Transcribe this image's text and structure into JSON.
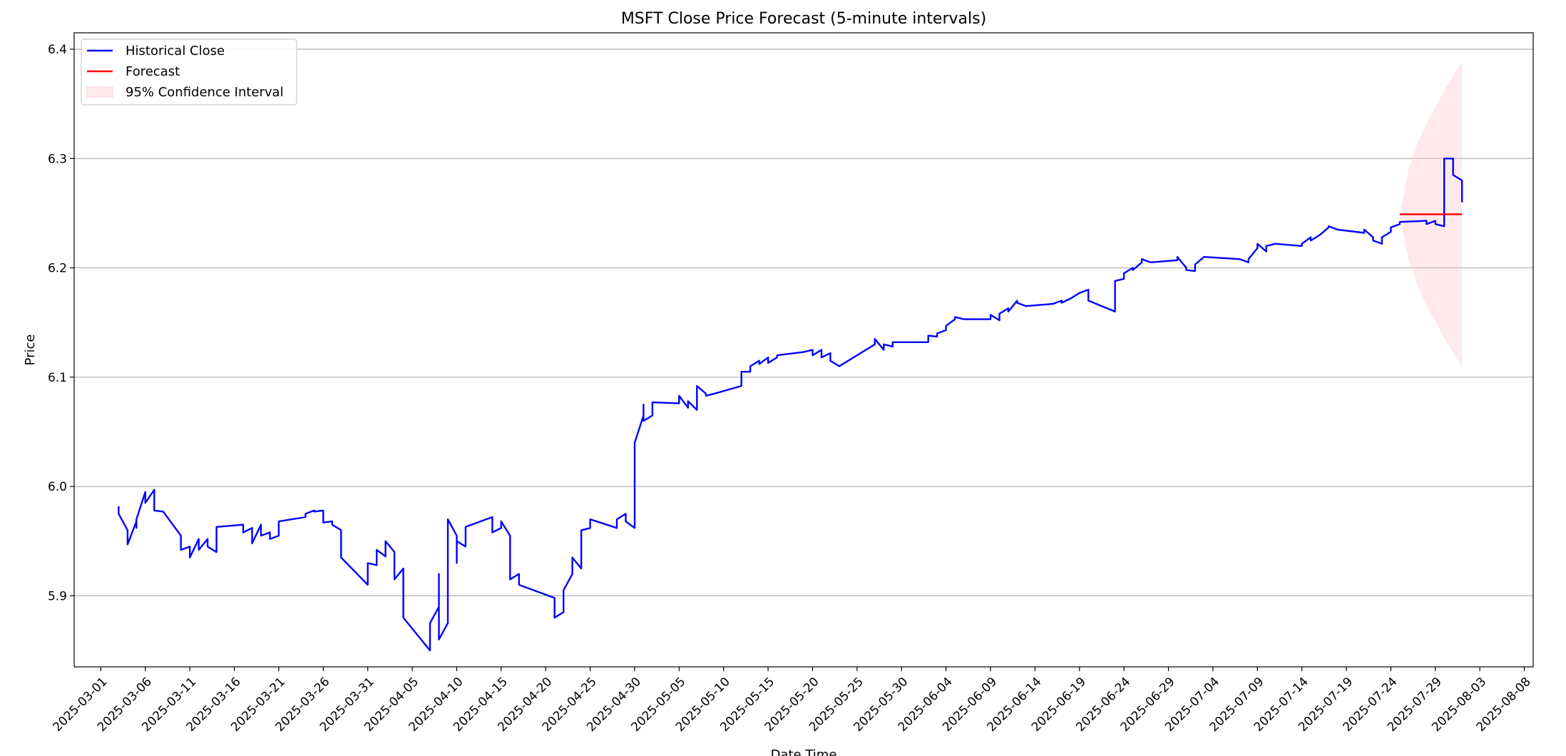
{
  "chart_data": {
    "type": "line",
    "title": "MSFT Close Price Forecast (5-minute intervals)",
    "xlabel": "Date Time",
    "ylabel": "Price",
    "x_type": "date",
    "xlim": [
      "2025-02-26",
      "2025-08-09"
    ],
    "ylim": [
      5.835,
      6.415
    ],
    "yticks": [
      5.9,
      6.0,
      6.1,
      6.2,
      6.3,
      6.4
    ],
    "ytick_labels": [
      "5.9",
      "6.0",
      "6.1",
      "6.2",
      "6.3",
      "6.4"
    ],
    "xticks": [
      "2025-03-01",
      "2025-03-06",
      "2025-03-11",
      "2025-03-16",
      "2025-03-21",
      "2025-03-26",
      "2025-03-31",
      "2025-04-05",
      "2025-04-10",
      "2025-04-15",
      "2025-04-20",
      "2025-04-25",
      "2025-04-30",
      "2025-05-05",
      "2025-05-10",
      "2025-05-15",
      "2025-05-20",
      "2025-05-25",
      "2025-05-30",
      "2025-06-04",
      "2025-06-09",
      "2025-06-14",
      "2025-06-19",
      "2025-06-24",
      "2025-06-29",
      "2025-07-04",
      "2025-07-09",
      "2025-07-14",
      "2025-07-19",
      "2025-07-24",
      "2025-07-29",
      "2025-08-03",
      "2025-08-08"
    ],
    "grid": "horizontal",
    "legend_position": "top-left",
    "legend": [
      {
        "label": "Historical Close",
        "kind": "line",
        "color": "#0000ff"
      },
      {
        "label": "Forecast",
        "kind": "line",
        "color": "#ff0000"
      },
      {
        "label": "95% Confidence Interval",
        "kind": "band",
        "color": "#ffc0cb"
      }
    ],
    "series": [
      {
        "name": "Historical Close",
        "color": "#0000ff",
        "points": [
          [
            "2025-03-03",
            5.982
          ],
          [
            "2025-03-03",
            5.975
          ],
          [
            "2025-03-04",
            5.96
          ],
          [
            "2025-03-04",
            5.955
          ],
          [
            "2025-03-04",
            5.947
          ],
          [
            "2025-03-05",
            5.968
          ],
          [
            "2025-03-05",
            5.962
          ],
          [
            "2025-03-05",
            5.97
          ],
          [
            "2025-03-06",
            5.995
          ],
          [
            "2025-03-06",
            5.985
          ],
          [
            "2025-03-07",
            5.997
          ],
          [
            "2025-03-07",
            5.985
          ],
          [
            "2025-03-07",
            5.978
          ],
          [
            "2025-03-08",
            5.977
          ],
          [
            "2025-03-10",
            5.955
          ],
          [
            "2025-03-10",
            5.942
          ],
          [
            "2025-03-11",
            5.945
          ],
          [
            "2025-03-11",
            5.935
          ],
          [
            "2025-03-12",
            5.952
          ],
          [
            "2025-03-12",
            5.942
          ],
          [
            "2025-03-13",
            5.952
          ],
          [
            "2025-03-13",
            5.945
          ],
          [
            "2025-03-14",
            5.94
          ],
          [
            "2025-03-14",
            5.945
          ],
          [
            "2025-03-14",
            5.963
          ],
          [
            "2025-03-17",
            5.965
          ],
          [
            "2025-03-17",
            5.958
          ],
          [
            "2025-03-18",
            5.962
          ],
          [
            "2025-03-18",
            5.948
          ],
          [
            "2025-03-19",
            5.965
          ],
          [
            "2025-03-19",
            5.955
          ],
          [
            "2025-03-20",
            5.958
          ],
          [
            "2025-03-20",
            5.952
          ],
          [
            "2025-03-21",
            5.955
          ],
          [
            "2025-03-21",
            5.968
          ],
          [
            "2025-03-24",
            5.972
          ],
          [
            "2025-03-24",
            5.975
          ],
          [
            "2025-03-25",
            5.978
          ],
          [
            "2025-03-25",
            5.977
          ],
          [
            "2025-03-26",
            5.978
          ],
          [
            "2025-03-26",
            5.967
          ],
          [
            "2025-03-27",
            5.968
          ],
          [
            "2025-03-27",
            5.965
          ],
          [
            "2025-03-28",
            5.96
          ],
          [
            "2025-03-28",
            5.935
          ],
          [
            "2025-03-31",
            5.91
          ],
          [
            "2025-03-31",
            5.93
          ],
          [
            "2025-04-01",
            5.928
          ],
          [
            "2025-04-01",
            5.942
          ],
          [
            "2025-04-02",
            5.936
          ],
          [
            "2025-04-02",
            5.95
          ],
          [
            "2025-04-03",
            5.94
          ],
          [
            "2025-04-03",
            5.915
          ],
          [
            "2025-04-04",
            5.925
          ],
          [
            "2025-04-04",
            5.895
          ],
          [
            "2025-04-04",
            5.88
          ],
          [
            "2025-04-07",
            5.85
          ],
          [
            "2025-04-07",
            5.875
          ],
          [
            "2025-04-08",
            5.89
          ],
          [
            "2025-04-08",
            5.92
          ],
          [
            "2025-04-08",
            5.86
          ],
          [
            "2025-04-09",
            5.875
          ],
          [
            "2025-04-09",
            5.895
          ],
          [
            "2025-04-09",
            5.97
          ],
          [
            "2025-04-10",
            5.955
          ],
          [
            "2025-04-10",
            5.93
          ],
          [
            "2025-04-10",
            5.95
          ],
          [
            "2025-04-11",
            5.945
          ],
          [
            "2025-04-11",
            5.963
          ],
          [
            "2025-04-14",
            5.972
          ],
          [
            "2025-04-14",
            5.958
          ],
          [
            "2025-04-15",
            5.962
          ],
          [
            "2025-04-15",
            5.968
          ],
          [
            "2025-04-16",
            5.955
          ],
          [
            "2025-04-16",
            5.915
          ],
          [
            "2025-04-17",
            5.92
          ],
          [
            "2025-04-17",
            5.91
          ],
          [
            "2025-04-21",
            5.898
          ],
          [
            "2025-04-21",
            5.88
          ],
          [
            "2025-04-22",
            5.885
          ],
          [
            "2025-04-22",
            5.905
          ],
          [
            "2025-04-23",
            5.92
          ],
          [
            "2025-04-23",
            5.935
          ],
          [
            "2025-04-24",
            5.925
          ],
          [
            "2025-04-24",
            5.96
          ],
          [
            "2025-04-25",
            5.962
          ],
          [
            "2025-04-25",
            5.97
          ],
          [
            "2025-04-28",
            5.962
          ],
          [
            "2025-04-28",
            5.97
          ],
          [
            "2025-04-29",
            5.975
          ],
          [
            "2025-04-29",
            5.968
          ],
          [
            "2025-04-30",
            5.962
          ],
          [
            "2025-04-30",
            6.04
          ],
          [
            "2025-05-01",
            6.065
          ],
          [
            "2025-05-01",
            6.075
          ],
          [
            "2025-05-01",
            6.06
          ],
          [
            "2025-05-02",
            6.065
          ],
          [
            "2025-05-02",
            6.077
          ],
          [
            "2025-05-05",
            6.076
          ],
          [
            "2025-05-05",
            6.083
          ],
          [
            "2025-05-06",
            6.072
          ],
          [
            "2025-05-06",
            6.078
          ],
          [
            "2025-05-07",
            6.07
          ],
          [
            "2025-05-07",
            6.08
          ],
          [
            "2025-05-07",
            6.092
          ],
          [
            "2025-05-08",
            6.085
          ],
          [
            "2025-05-08",
            6.083
          ],
          [
            "2025-05-09",
            6.085
          ],
          [
            "2025-05-12",
            6.092
          ],
          [
            "2025-05-12",
            6.105
          ],
          [
            "2025-05-13",
            6.105
          ],
          [
            "2025-05-13",
            6.11
          ],
          [
            "2025-05-14",
            6.115
          ],
          [
            "2025-05-14",
            6.112
          ],
          [
            "2025-05-15",
            6.118
          ],
          [
            "2025-05-15",
            6.113
          ],
          [
            "2025-05-16",
            6.118
          ],
          [
            "2025-05-16",
            6.12
          ],
          [
            "2025-05-19",
            6.123
          ],
          [
            "2025-05-20",
            6.125
          ],
          [
            "2025-05-20",
            6.12
          ],
          [
            "2025-05-21",
            6.125
          ],
          [
            "2025-05-21",
            6.118
          ],
          [
            "2025-05-22",
            6.122
          ],
          [
            "2025-05-22",
            6.115
          ],
          [
            "2025-05-23",
            6.11
          ],
          [
            "2025-05-27",
            6.13
          ],
          [
            "2025-05-27",
            6.135
          ],
          [
            "2025-05-28",
            6.125
          ],
          [
            "2025-05-28",
            6.13
          ],
          [
            "2025-05-29",
            6.128
          ],
          [
            "2025-05-29",
            6.132
          ],
          [
            "2025-06-02",
            6.132
          ],
          [
            "2025-06-02",
            6.138
          ],
          [
            "2025-06-03",
            6.137
          ],
          [
            "2025-06-03",
            6.14
          ],
          [
            "2025-06-04",
            6.143
          ],
          [
            "2025-06-04",
            6.147
          ],
          [
            "2025-06-05",
            6.153
          ],
          [
            "2025-06-05",
            6.155
          ],
          [
            "2025-06-06",
            6.153
          ],
          [
            "2025-06-09",
            6.153
          ],
          [
            "2025-06-09",
            6.157
          ],
          [
            "2025-06-10",
            6.152
          ],
          [
            "2025-06-10",
            6.158
          ],
          [
            "2025-06-11",
            6.163
          ],
          [
            "2025-06-11",
            6.16
          ],
          [
            "2025-06-12",
            6.17
          ],
          [
            "2025-06-12",
            6.168
          ],
          [
            "2025-06-13",
            6.165
          ],
          [
            "2025-06-16",
            6.167
          ],
          [
            "2025-06-17",
            6.17
          ],
          [
            "2025-06-17",
            6.168
          ],
          [
            "2025-06-18",
            6.172
          ],
          [
            "2025-06-19",
            6.177
          ],
          [
            "2025-06-20",
            6.18
          ],
          [
            "2025-06-20",
            6.17
          ],
          [
            "2025-06-23",
            6.16
          ],
          [
            "2025-06-23",
            6.188
          ],
          [
            "2025-06-24",
            6.19
          ],
          [
            "2025-06-24",
            6.195
          ],
          [
            "2025-06-25",
            6.2
          ],
          [
            "2025-06-25",
            6.198
          ],
          [
            "2025-06-26",
            6.205
          ],
          [
            "2025-06-26",
            6.208
          ],
          [
            "2025-06-27",
            6.205
          ],
          [
            "2025-06-30",
            6.207
          ],
          [
            "2025-06-30",
            6.21
          ],
          [
            "2025-07-01",
            6.2
          ],
          [
            "2025-07-01",
            6.198
          ],
          [
            "2025-07-02",
            6.197
          ],
          [
            "2025-07-02",
            6.203
          ],
          [
            "2025-07-03",
            6.21
          ],
          [
            "2025-07-07",
            6.208
          ],
          [
            "2025-07-08",
            6.205
          ],
          [
            "2025-07-08",
            6.208
          ],
          [
            "2025-07-09",
            6.218
          ],
          [
            "2025-07-09",
            6.222
          ],
          [
            "2025-07-10",
            6.215
          ],
          [
            "2025-07-10",
            6.22
          ],
          [
            "2025-07-11",
            6.222
          ],
          [
            "2025-07-14",
            6.22
          ],
          [
            "2025-07-14",
            6.222
          ],
          [
            "2025-07-15",
            6.228
          ],
          [
            "2025-07-15",
            6.225
          ],
          [
            "2025-07-16",
            6.23
          ],
          [
            "2025-07-17",
            6.237
          ],
          [
            "2025-07-17",
            6.238
          ],
          [
            "2025-07-18",
            6.235
          ],
          [
            "2025-07-21",
            6.232
          ],
          [
            "2025-07-21",
            6.235
          ],
          [
            "2025-07-22",
            6.228
          ],
          [
            "2025-07-22",
            6.225
          ],
          [
            "2025-07-23",
            6.222
          ],
          [
            "2025-07-23",
            6.228
          ],
          [
            "2025-07-24",
            6.233
          ],
          [
            "2025-07-24",
            6.237
          ],
          [
            "2025-07-25",
            6.24
          ],
          [
            "2025-07-25",
            6.242
          ],
          [
            "2025-07-28",
            6.243
          ],
          [
            "2025-07-28",
            6.24
          ],
          [
            "2025-07-29",
            6.243
          ],
          [
            "2025-07-29",
            6.24
          ],
          [
            "2025-07-30",
            6.238
          ],
          [
            "2025-07-30",
            6.24
          ],
          [
            "2025-07-30",
            6.3
          ],
          [
            "2025-07-31",
            6.3
          ],
          [
            "2025-07-31",
            6.285
          ],
          [
            "2025-08-01",
            6.28
          ],
          [
            "2025-08-01",
            6.265
          ],
          [
            "2025-08-01",
            6.26
          ]
        ]
      },
      {
        "name": "Forecast",
        "color": "#ff0000",
        "points": [
          [
            "2025-07-25",
            6.249
          ],
          [
            "2025-08-01",
            6.249
          ]
        ]
      }
    ],
    "confidence_interval": {
      "name": "95% Confidence Interval",
      "color": "#ffc0cb",
      "x": [
        "2025-07-25",
        "2025-07-26",
        "2025-07-27",
        "2025-07-28",
        "2025-07-29",
        "2025-07-30",
        "2025-07-31",
        "2025-08-01"
      ],
      "lower": [
        6.249,
        6.207,
        6.184,
        6.166,
        6.151,
        6.136,
        6.122,
        6.11
      ],
      "upper": [
        6.249,
        6.291,
        6.314,
        6.332,
        6.347,
        6.362,
        6.376,
        6.388
      ]
    }
  }
}
